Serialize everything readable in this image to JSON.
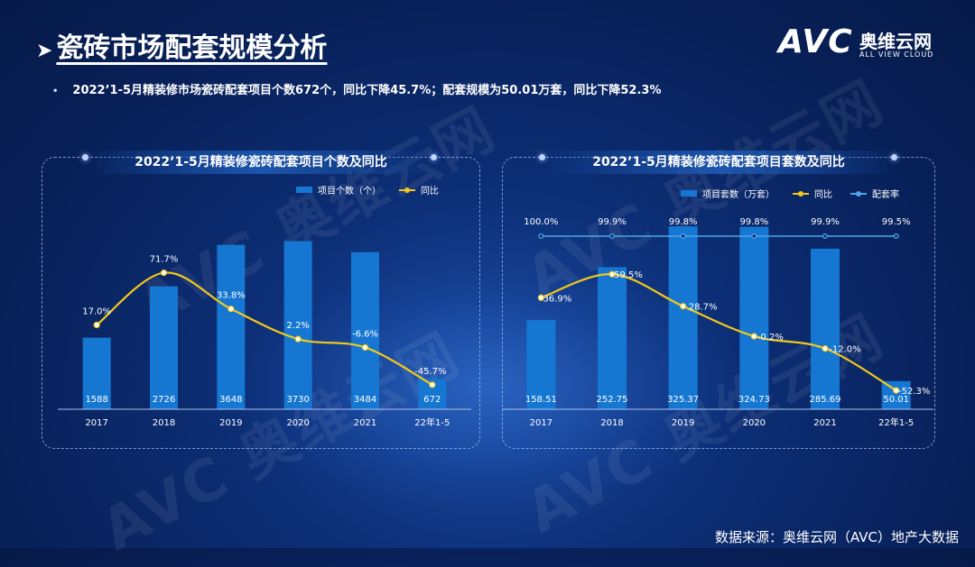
{
  "title": "瓷砖市场配套规模分析",
  "logo": {
    "mark": "AVC",
    "cn": "奥维云网",
    "en": "ALL VIEW CLOUD"
  },
  "summary": "2022’1-5月精装修市场瓷砖配套项目个数672个，同比下降45.7%；配套规模为50.01万套，同比下降52.3%",
  "source": "数据来源：奥维云网（AVC）地产大数据",
  "colors": {
    "bar": "#1677d2",
    "line": "#f2c81b",
    "rate": "#4ea6ea"
  },
  "chart_data": [
    {
      "type": "bar+line",
      "title": "2022’1-5月精装修瓷砖配套项目个数及同比",
      "categories": [
        "2017",
        "2018",
        "2019",
        "2020",
        "2021",
        "22年1-5"
      ],
      "series": [
        {
          "name": "项目个数（个）",
          "kind": "bar",
          "values": [
            1588,
            2726,
            3648,
            3730,
            3484,
            672
          ]
        },
        {
          "name": "同比",
          "kind": "line",
          "values": [
            17.0,
            71.7,
            33.8,
            2.2,
            -6.6,
            -45.7
          ],
          "labels": [
            "17.0%",
            "71.7%",
            "33.8%",
            "2.2%",
            "-6.6%",
            "-45.7%"
          ]
        }
      ],
      "bar_ylim": [
        0,
        4000
      ],
      "line_ylim": [
        -60,
        110
      ],
      "grid": false,
      "legend_position": "top-right"
    },
    {
      "type": "bar+line",
      "title": "2022’1-5月精装修瓷砖配套项目套数及同比",
      "categories": [
        "2017",
        "2018",
        "2019",
        "2020",
        "2021",
        "22年1-5"
      ],
      "series": [
        {
          "name": "项目套数（万套）",
          "kind": "bar",
          "values": [
            158.51,
            252.75,
            325.37,
            324.73,
            285.69,
            50.01
          ],
          "labels": [
            "158.51",
            "252.75",
            "325.37",
            "324.73",
            "285.69",
            "50.01"
          ]
        },
        {
          "name": "同比",
          "kind": "line",
          "values": [
            36.9,
            59.5,
            28.7,
            -0.2,
            -12.0,
            -52.3
          ],
          "labels": [
            "36.9%",
            "59.5%",
            "28.7%",
            "-0.2%",
            "-12.0%",
            "-52.3%"
          ]
        },
        {
          "name": "配套率",
          "kind": "line",
          "values": [
            100.0,
            99.9,
            99.8,
            99.8,
            99.9,
            99.5
          ],
          "labels": [
            "100.0%",
            "99.9%",
            "99.8%",
            "99.8%",
            "99.9%",
            "99.5%"
          ]
        }
      ],
      "bar_ylim": [
        0,
        340
      ],
      "line_ylim": [
        -60,
        110
      ],
      "grid": false,
      "legend_position": "top-right"
    }
  ]
}
